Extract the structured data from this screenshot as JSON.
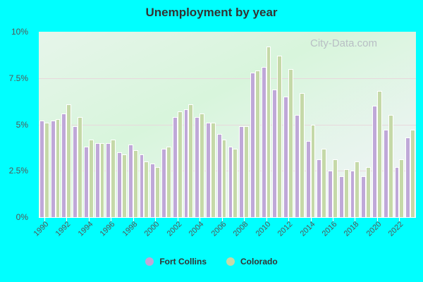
{
  "title": "Unemployment by year",
  "watermark": "City-Data.com",
  "legend": [
    {
      "label": "Fort Collins",
      "color": "#bfa8d8"
    },
    {
      "label": "Colorado",
      "color": "#c5d9a8"
    }
  ],
  "yticks": [
    "0%",
    "2.5%",
    "5%",
    "7.5%",
    "10%"
  ],
  "xticks": [
    "1990",
    "1992",
    "1994",
    "1996",
    "1998",
    "2000",
    "2002",
    "2004",
    "2006",
    "2008",
    "2010",
    "2012",
    "2014",
    "2016",
    "2018",
    "2020",
    "2022"
  ],
  "chart_data": {
    "type": "bar",
    "title": "Unemployment by year",
    "xlabel": "",
    "ylabel": "",
    "ylim": [
      0,
      10
    ],
    "grid": true,
    "legend_position": "bottom",
    "categories": [
      1990,
      1991,
      1992,
      1993,
      1994,
      1995,
      1996,
      1997,
      1998,
      1999,
      2000,
      2001,
      2002,
      2003,
      2004,
      2005,
      2006,
      2007,
      2008,
      2009,
      2010,
      2011,
      2012,
      2013,
      2014,
      2015,
      2016,
      2017,
      2018,
      2019,
      2020,
      2021,
      2022,
      2023
    ],
    "series": [
      {
        "name": "Fort Collins",
        "values": [
          5.2,
          5.2,
          5.6,
          4.9,
          3.8,
          4.0,
          4.0,
          3.5,
          3.9,
          3.4,
          2.9,
          3.7,
          5.4,
          5.8,
          5.4,
          5.1,
          4.5,
          3.8,
          4.9,
          7.8,
          8.1,
          6.9,
          6.5,
          5.5,
          4.1,
          3.1,
          2.5,
          2.2,
          2.5,
          2.2,
          6.0,
          4.7,
          2.7,
          4.3
        ]
      },
      {
        "name": "Colorado",
        "values": [
          5.1,
          5.3,
          6.1,
          5.4,
          4.2,
          4.0,
          4.2,
          3.4,
          3.6,
          3.0,
          2.7,
          3.8,
          5.7,
          6.1,
          5.6,
          5.1,
          4.2,
          3.7,
          4.9,
          7.9,
          9.2,
          8.7,
          8.0,
          6.7,
          5.0,
          3.7,
          3.1,
          2.6,
          3.0,
          2.7,
          6.8,
          5.5,
          3.1,
          4.7
        ]
      }
    ]
  }
}
